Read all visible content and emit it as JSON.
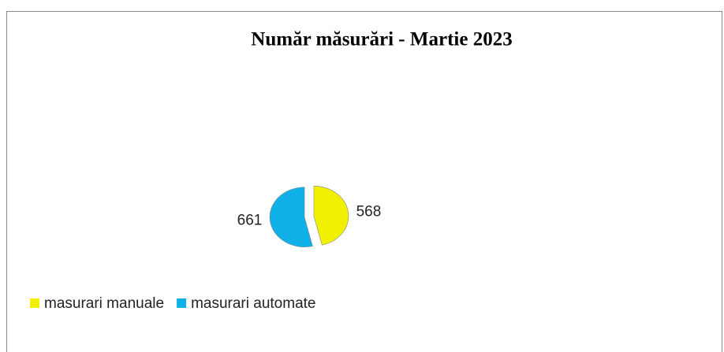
{
  "chart_data": {
    "type": "pie",
    "title": "Număr măsurări - Martie 2023",
    "categories": [
      "masurari manuale",
      "masurari automate"
    ],
    "values": [
      568,
      661
    ],
    "colors": [
      "#f0f000",
      "#10b0e8"
    ],
    "legend": "bottom-left"
  }
}
